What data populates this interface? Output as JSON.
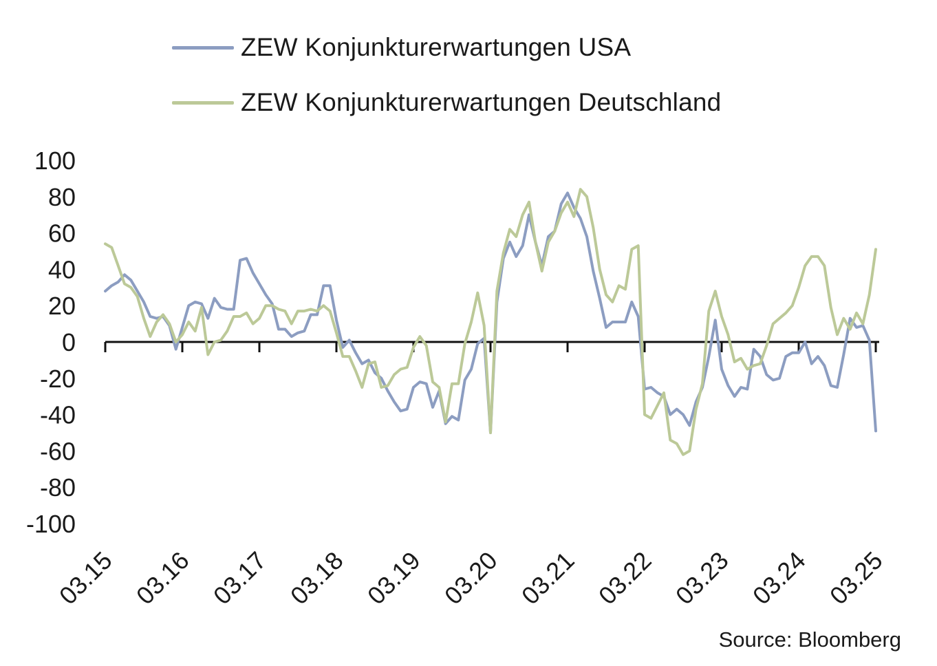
{
  "chart_data": {
    "type": "line",
    "title": "",
    "xlabel": "",
    "ylabel": "",
    "ylim": [
      -100,
      100
    ],
    "yticks": [
      100,
      80,
      60,
      40,
      20,
      0,
      -20,
      -40,
      -60,
      -80,
      -100
    ],
    "xticks": [
      "03.15",
      "03.16",
      "03.17",
      "03.18",
      "03.19",
      "03.20",
      "03.21",
      "03.22",
      "03.23",
      "03.24",
      "03.25"
    ],
    "x_start": "2015-03",
    "x_end": "2025-03",
    "grid": false,
    "legend": "top-left",
    "series": [
      {
        "name": "ZEW Konjunkturerwartungen USA",
        "color": "#8c9dc1",
        "values": [
          28,
          31,
          33,
          37,
          34,
          28,
          22,
          14,
          13,
          14,
          9,
          -4,
          8,
          20,
          22,
          21,
          13,
          24,
          19,
          18,
          18,
          45,
          46,
          38,
          32,
          26,
          21,
          7,
          7,
          3,
          5,
          6,
          15,
          15,
          31,
          31,
          12,
          -3,
          1,
          -6,
          -12,
          -10,
          -17,
          -20,
          -27,
          -33,
          -38,
          -37,
          -25,
          -22,
          -23,
          -36,
          -27,
          -45,
          -41,
          -43,
          -21,
          -15,
          -1,
          2,
          -50,
          22,
          46,
          55,
          47,
          53,
          70,
          55,
          42,
          58,
          61,
          76,
          82,
          74,
          68,
          58,
          39,
          24,
          8,
          11,
          11,
          11,
          22,
          14,
          -26,
          -25,
          -28,
          -30,
          -40,
          -37,
          -40,
          -46,
          -33,
          -25,
          -8,
          12,
          -15,
          -24,
          -30,
          -25,
          -26,
          -4,
          -8,
          -18,
          -21,
          -20,
          -8,
          -6,
          -6,
          0,
          -12,
          -8,
          -13,
          -24,
          -25,
          -7,
          13,
          8,
          9,
          1,
          -49
        ]
      },
      {
        "name": "ZEW Konjunkturerwartungen Deutschland",
        "color": "#bcc998",
        "values": [
          54,
          52,
          42,
          32,
          30,
          25,
          13,
          3,
          11,
          15,
          10,
          0,
          4,
          11,
          6,
          19,
          -7,
          0,
          1,
          6,
          14,
          14,
          16,
          10,
          13,
          20,
          20,
          18,
          17,
          10,
          17,
          17,
          18,
          17,
          20,
          17,
          5,
          -8,
          -8,
          -16,
          -25,
          -12,
          -11,
          -25,
          -24,
          -18,
          -15,
          -14,
          -3,
          3,
          -2,
          -22,
          -25,
          -44,
          -23,
          -23,
          -1,
          11,
          27,
          9,
          -50,
          28,
          49,
          62,
          58,
          70,
          77,
          55,
          39,
          55,
          61,
          71,
          77,
          69,
          84,
          80,
          63,
          40,
          26,
          22,
          31,
          29,
          51,
          53,
          -40,
          -42,
          -35,
          -28,
          -54,
          -56,
          -62,
          -60,
          -37,
          -23,
          17,
          28,
          14,
          4,
          -11,
          -9,
          -15,
          -13,
          -12,
          -2,
          10,
          13,
          16,
          20,
          30,
          42,
          47,
          47,
          42,
          19,
          4,
          13,
          7,
          16,
          10,
          26,
          51
        ]
      }
    ]
  },
  "legend": {
    "items": [
      {
        "label": "ZEW Konjunkturerwartungen USA",
        "color": "#8c9dc1"
      },
      {
        "label": "ZEW Konjunkturerwartungen Deutschland",
        "color": "#bcc998"
      }
    ]
  },
  "source": "Source: Bloomberg"
}
